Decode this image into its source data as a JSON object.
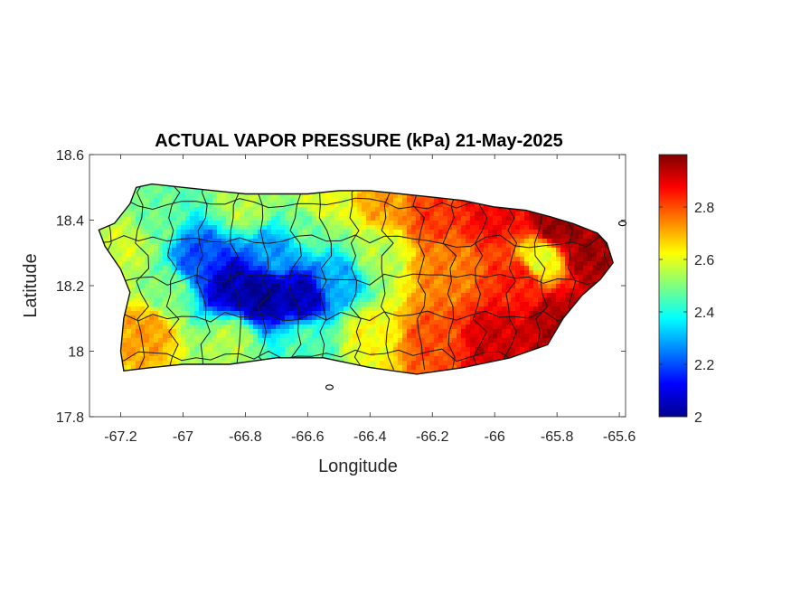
{
  "chart_data": {
    "type": "heatmap",
    "title": "ACTUAL VAPOR PRESSURE (kPa) 21-May-2025",
    "xlabel": "Longitude",
    "ylabel": "Latitude",
    "xlim": [
      -67.3,
      -65.58
    ],
    "ylim": [
      17.8,
      18.6
    ],
    "x_ticks": [
      -67.2,
      -67,
      -66.8,
      -66.6,
      -66.4,
      -66.2,
      -66,
      -65.8,
      -65.6
    ],
    "x_tick_labels": [
      "-67.2",
      "-67",
      "-66.8",
      "-66.6",
      "-66.4",
      "-66.2",
      "-66",
      "-65.8",
      "-65.6"
    ],
    "y_ticks": [
      17.8,
      18,
      18.2,
      18.4,
      18.6
    ],
    "y_tick_labels": [
      "17.8",
      "18",
      "18.2",
      "18.4",
      "18.6"
    ],
    "colorbar": {
      "colormap": "jet",
      "range": [
        2.0,
        3.0
      ],
      "ticks": [
        2,
        2.2,
        2.4,
        2.6,
        2.8
      ],
      "tick_labels": [
        "2",
        "2.2",
        "2.4",
        "2.6",
        "2.8"
      ]
    },
    "grid": false,
    "region_outline": [
      [
        -67.27,
        18.37
      ],
      [
        -67.22,
        18.39
      ],
      [
        -67.17,
        18.45
      ],
      [
        -67.15,
        18.5
      ],
      [
        -67.1,
        18.51
      ],
      [
        -67.0,
        18.5
      ],
      [
        -66.9,
        18.49
      ],
      [
        -66.8,
        18.48
      ],
      [
        -66.7,
        18.48
      ],
      [
        -66.6,
        18.48
      ],
      [
        -66.5,
        18.49
      ],
      [
        -66.4,
        18.49
      ],
      [
        -66.3,
        18.48
      ],
      [
        -66.2,
        18.47
      ],
      [
        -66.1,
        18.46
      ],
      [
        -66.0,
        18.44
      ],
      [
        -65.9,
        18.43
      ],
      [
        -65.82,
        18.41
      ],
      [
        -65.75,
        18.39
      ],
      [
        -65.67,
        18.36
      ],
      [
        -65.64,
        18.33
      ],
      [
        -65.62,
        18.27
      ],
      [
        -65.66,
        18.22
      ],
      [
        -65.72,
        18.17
      ],
      [
        -65.78,
        18.1
      ],
      [
        -65.83,
        18.02
      ],
      [
        -65.95,
        17.98
      ],
      [
        -66.1,
        17.95
      ],
      [
        -66.25,
        17.93
      ],
      [
        -66.4,
        17.95
      ],
      [
        -66.55,
        17.98
      ],
      [
        -66.7,
        17.98
      ],
      [
        -66.85,
        17.96
      ],
      [
        -67.0,
        17.96
      ],
      [
        -67.1,
        17.95
      ],
      [
        -67.19,
        17.94
      ],
      [
        -67.2,
        18.0
      ],
      [
        -67.19,
        18.1
      ],
      [
        -67.17,
        18.18
      ],
      [
        -67.2,
        18.25
      ],
      [
        -67.25,
        18.32
      ],
      [
        -67.27,
        18.37
      ]
    ],
    "islets": [
      [
        -66.53,
        17.89
      ],
      [
        -65.59,
        18.39
      ]
    ],
    "value_anchors": [
      {
        "lon": -67.1,
        "lat": 18.4,
        "value": 2.48
      },
      {
        "lon": -67.18,
        "lat": 18.33,
        "value": 2.58
      },
      {
        "lon": -67.12,
        "lat": 18.06,
        "value": 2.72
      },
      {
        "lon": -67.05,
        "lat": 18.18,
        "value": 2.5
      },
      {
        "lon": -66.95,
        "lat": 18.28,
        "value": 2.2
      },
      {
        "lon": -66.85,
        "lat": 18.2,
        "value": 2.05
      },
      {
        "lon": -66.75,
        "lat": 18.17,
        "value": 2.02
      },
      {
        "lon": -66.62,
        "lat": 18.17,
        "value": 2.05
      },
      {
        "lon": -66.7,
        "lat": 18.3,
        "value": 2.28
      },
      {
        "lon": -66.6,
        "lat": 18.38,
        "value": 2.48
      },
      {
        "lon": -66.5,
        "lat": 18.22,
        "value": 2.3
      },
      {
        "lon": -66.8,
        "lat": 18.45,
        "value": 2.55
      },
      {
        "lon": -66.55,
        "lat": 18.45,
        "value": 2.6
      },
      {
        "lon": -66.85,
        "lat": 18.03,
        "value": 2.55
      },
      {
        "lon": -66.6,
        "lat": 18.02,
        "value": 2.45
      },
      {
        "lon": -66.4,
        "lat": 18.05,
        "value": 2.62
      },
      {
        "lon": -66.38,
        "lat": 18.3,
        "value": 2.55
      },
      {
        "lon": -66.35,
        "lat": 18.45,
        "value": 2.72
      },
      {
        "lon": -66.2,
        "lat": 18.42,
        "value": 2.82
      },
      {
        "lon": -66.15,
        "lat": 18.25,
        "value": 2.75
      },
      {
        "lon": -66.2,
        "lat": 18.03,
        "value": 2.8
      },
      {
        "lon": -66.0,
        "lat": 18.03,
        "value": 2.92
      },
      {
        "lon": -66.0,
        "lat": 18.42,
        "value": 2.88
      },
      {
        "lon": -65.92,
        "lat": 18.22,
        "value": 2.85
      },
      {
        "lon": -65.8,
        "lat": 18.38,
        "value": 2.98
      },
      {
        "lon": -65.7,
        "lat": 18.3,
        "value": 2.97
      },
      {
        "lon": -65.8,
        "lat": 18.1,
        "value": 2.95
      },
      {
        "lon": -65.85,
        "lat": 18.28,
        "value": 2.6
      }
    ]
  }
}
